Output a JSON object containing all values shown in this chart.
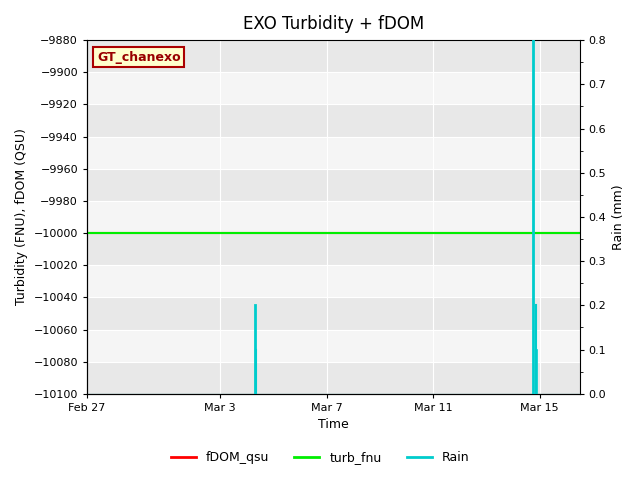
{
  "title": "EXO Turbidity + fDOM",
  "xlabel": "Time",
  "ylabel_left": "Turbidity (FNU), fDOM (QSU)",
  "ylabel_right": "Rain (mm)",
  "ylim_left": [
    -10100,
    -9880
  ],
  "ylim_right": [
    0.0,
    0.8
  ],
  "yticks_left": [
    -10100,
    -10080,
    -10060,
    -10040,
    -10020,
    -10000,
    -9980,
    -9960,
    -9940,
    -9920,
    -9900,
    -9880
  ],
  "yticks_right": [
    0.0,
    0.1,
    0.2,
    0.3,
    0.4,
    0.5,
    0.6,
    0.7,
    0.8
  ],
  "xtick_labels": [
    "Feb 27",
    "Mar 3",
    "Mar 7",
    "Mar 11",
    "Mar 15"
  ],
  "xtick_positions": [
    0,
    5,
    9,
    13,
    17
  ],
  "xlim": [
    0,
    18.5
  ],
  "fdom_qsu_value": -10000,
  "turb_fnu_value": -10000,
  "fdom_color": "#ff0000",
  "turb_color": "#00ee00",
  "rain_color": "#00cccc",
  "plot_bg_color": "#e8e8e8",
  "plot_bg_alt_color": "#f5f5f5",
  "legend_box_label": "GT_chanexo",
  "legend_box_facecolor": "#ffffcc",
  "legend_box_edgecolor": "#aa0000",
  "legend_label_fdom": "fDOM_qsu",
  "legend_label_turb": "turb_fnu",
  "legend_label_rain": "Rain",
  "title_fontsize": 12,
  "axis_label_fontsize": 9,
  "tick_fontsize": 8,
  "rain_spike1_x": 6.3,
  "rain_spike1_height": 0.2,
  "rain_spike1b_x": 6.35,
  "rain_spike1b_height": 0.1,
  "rain_spike2_x": 16.75,
  "rain_spike2_height": 0.8,
  "rain_spike2b_x": 16.85,
  "rain_spike2b_height": 0.2,
  "rain_spike2c_x": 16.9,
  "rain_spike2c_height": 0.1,
  "rain_baseline_y": 0.0
}
